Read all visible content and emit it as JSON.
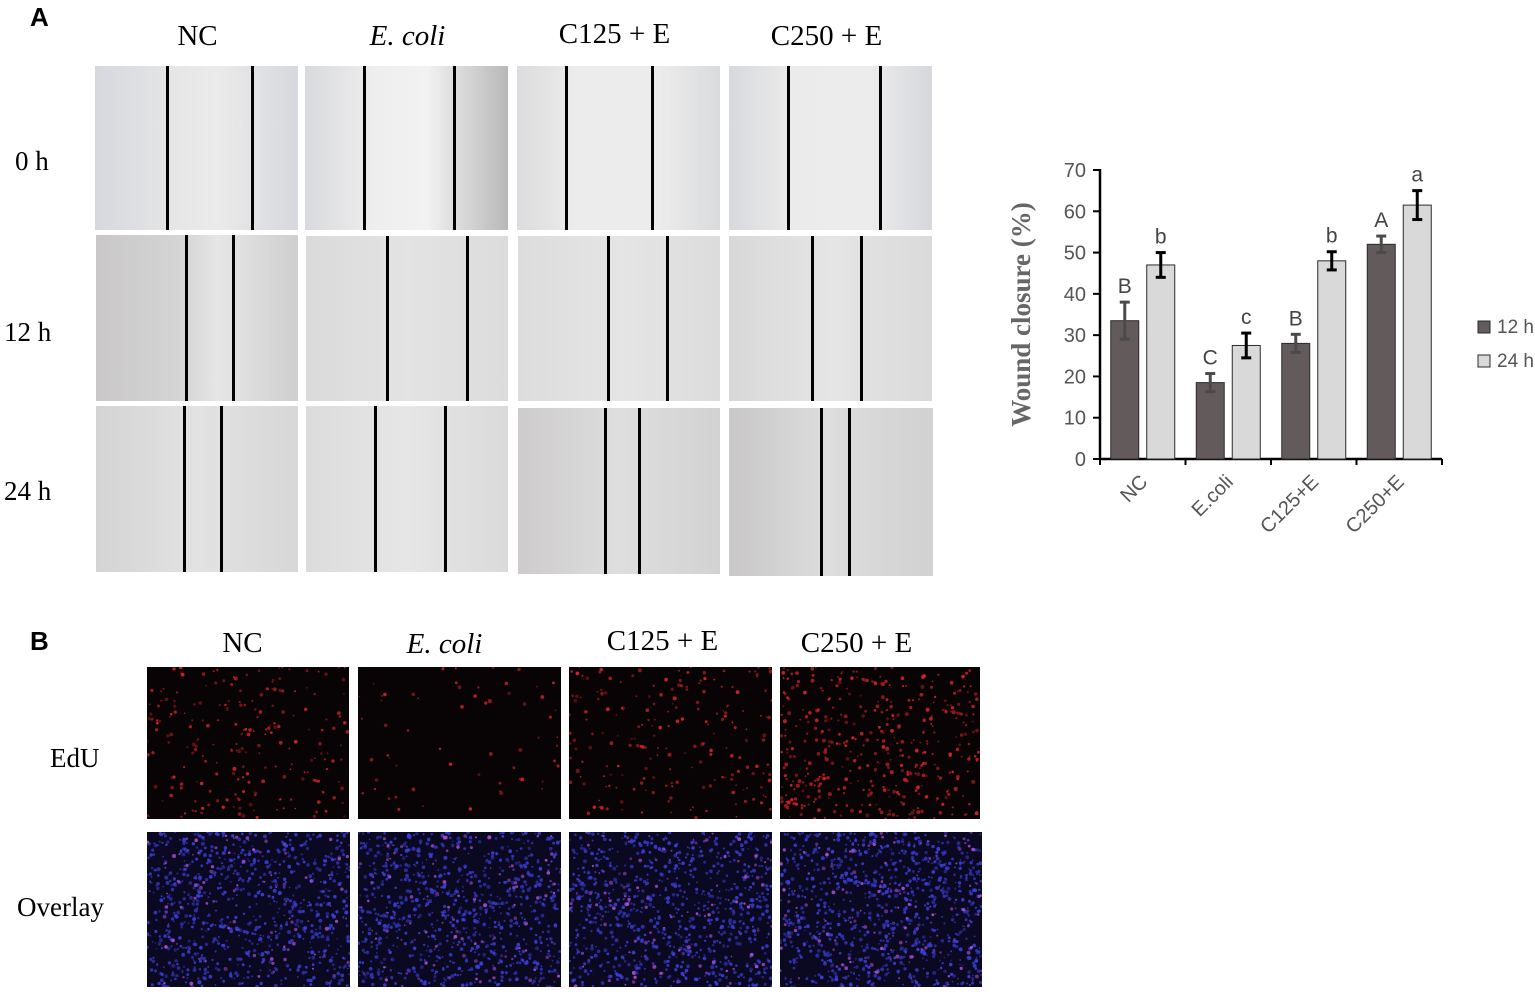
{
  "panel_a": {
    "letter": "A",
    "columns": [
      "NC",
      "E. coli",
      "C125 + E",
      "C250 + E"
    ],
    "rows": [
      "0 h",
      "12 h",
      "24 h"
    ]
  },
  "panel_b": {
    "letter": "B",
    "columns": [
      "NC",
      "E. coli",
      "C125 + E",
      "C250 + E"
    ],
    "rows": [
      "EdU",
      "Overlay"
    ]
  },
  "colors": {
    "bar_12h": "#625a5b",
    "bar_24h": "#d9d9d9",
    "axis": "#000000",
    "edu_dot": "#e0252a",
    "dapi_dot": "#3a3fd6"
  },
  "chart_data": {
    "type": "bar",
    "categories": [
      "NC",
      "E.coli",
      "C125+E",
      "C250+E"
    ],
    "ylabel": "Wound closure (%)",
    "ylim": [
      0,
      70
    ],
    "yticks": [
      "0",
      "10",
      "20",
      "30",
      "40",
      "50",
      "60",
      "70"
    ],
    "legend_position": "right",
    "series": [
      {
        "name": "12 h",
        "values": [
          33.5,
          18.5,
          28,
          52
        ],
        "errors": [
          4.5,
          2.2,
          2.2,
          2
        ],
        "letters": [
          "B",
          "C",
          "B",
          "A"
        ]
      },
      {
        "name": "24 h",
        "values": [
          47,
          27.5,
          48,
          61.5
        ],
        "errors": [
          3,
          3,
          2.2,
          3.5
        ],
        "letters": [
          "b",
          "c",
          "b",
          "a"
        ]
      }
    ]
  }
}
